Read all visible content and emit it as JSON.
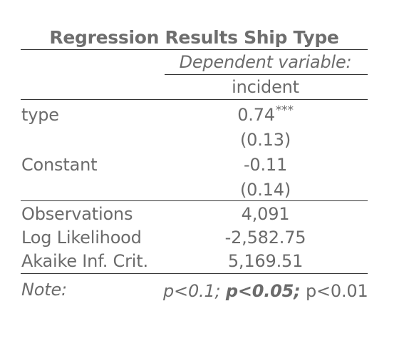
{
  "table": {
    "title": "Regression Results Ship Type",
    "dependent_variable_header": "Dependent variable:",
    "dependent_variable": "incident",
    "coefficients": [
      {
        "label": "type",
        "estimate": "0.74",
        "stars": "***",
        "se": "(0.13)"
      },
      {
        "label": "Constant",
        "estimate": "-0.11",
        "stars": "",
        "se": "(0.14)"
      }
    ],
    "stats": [
      {
        "label": "Observations",
        "value": "4,091"
      },
      {
        "label": "Log Likelihood",
        "value": "-2,582.75"
      },
      {
        "label": "Akaike Inf. Crit.",
        "value": "5,169.51"
      }
    ],
    "note": {
      "label": "Note:",
      "p1": "p<0.1;",
      "p2": "p<0.05;",
      "p3": "p<0.01"
    }
  }
}
